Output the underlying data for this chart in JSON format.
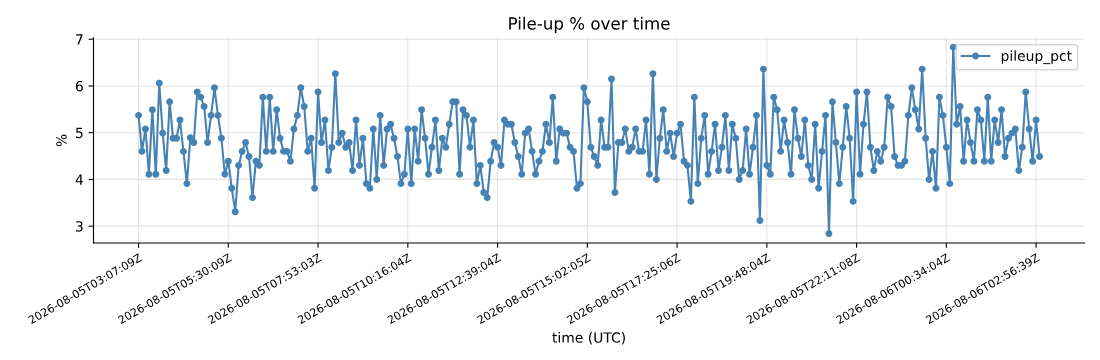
{
  "chart_data": {
    "type": "line",
    "title": "Pile-up % over time",
    "xlabel": "time (UTC)",
    "ylabel": "%",
    "categories": [
      "2026-08-05T03:07:09Z",
      null,
      null,
      null,
      null,
      null,
      null,
      null,
      null,
      null,
      null,
      null,
      null,
      null,
      null,
      null,
      null,
      null,
      null,
      null,
      null,
      null,
      null,
      null,
      null,
      null,
      "2026-08-05T05:30:09Z",
      null,
      null,
      null,
      null,
      null,
      null,
      null,
      null,
      null,
      null,
      null,
      null,
      null,
      null,
      null,
      null,
      null,
      null,
      null,
      null,
      null,
      null,
      null,
      null,
      null,
      "2026-08-05T07:53:03Z",
      null,
      null,
      null,
      null,
      null,
      null,
      null,
      null,
      null,
      null,
      null,
      null,
      null,
      null,
      null,
      null,
      null,
      null,
      null,
      null,
      null,
      null,
      null,
      null,
      null,
      "2026-08-05T10:16:04Z",
      null,
      null,
      null,
      null,
      null,
      null,
      null,
      null,
      null,
      null,
      null,
      null,
      null,
      null,
      null,
      null,
      null,
      null,
      null,
      null,
      null,
      null,
      null,
      null,
      null,
      "2026-08-05T12:39:04Z",
      null,
      null,
      null,
      null,
      null,
      null,
      null,
      null,
      null,
      null,
      null,
      null,
      null,
      null,
      null,
      null,
      null,
      null,
      null,
      null,
      null,
      null,
      null,
      null,
      null,
      "2026-08-05T15:02:05Z",
      null,
      null,
      null,
      null,
      null,
      null,
      null,
      null,
      null,
      null,
      null,
      null,
      null,
      null,
      null,
      null,
      null,
      null,
      null,
      null,
      null,
      null,
      null,
      null,
      null,
      "2026-08-05T17:25:06Z",
      null,
      null,
      null,
      null,
      null,
      null,
      null,
      null,
      null,
      null,
      null,
      null,
      null,
      null,
      null,
      null,
      null,
      null,
      null,
      null,
      null,
      null,
      null,
      null,
      null,
      "2026-08-05T19:48:04Z",
      null,
      null,
      null,
      null,
      null,
      null,
      null,
      null,
      null,
      null,
      null,
      null,
      null,
      null,
      null,
      null,
      null,
      null,
      null,
      null,
      null,
      null,
      null,
      null,
      null,
      "2026-08-05T22:11:08Z",
      null,
      null,
      null,
      null,
      null,
      null,
      null,
      null,
      null,
      null,
      null,
      null,
      null,
      null,
      null,
      null,
      null,
      null,
      null,
      null,
      null,
      null,
      null,
      null,
      null,
      "2026-08-06T00:34:04Z",
      null,
      null,
      null,
      null,
      null,
      null,
      null,
      null,
      null,
      null,
      null,
      null,
      null,
      null,
      null,
      null,
      null,
      null,
      null,
      null,
      null,
      null,
      null,
      null,
      null,
      "2026-08-06T02:56:39Z",
      null
    ],
    "series": [
      {
        "name": "pileup_pct",
        "color": "#4682b4",
        "values": [
          5.37,
          4.6,
          5.08,
          4.11,
          5.49,
          4.11,
          6.06,
          4.99,
          4.19,
          5.66,
          4.88,
          4.88,
          5.27,
          4.6,
          3.91,
          4.89,
          4.79,
          5.87,
          5.76,
          5.56,
          4.79,
          5.37,
          5.96,
          5.37,
          4.88,
          4.11,
          4.39,
          3.81,
          3.31,
          4.3,
          4.6,
          4.79,
          4.49,
          3.61,
          4.39,
          4.3,
          5.76,
          4.6,
          5.76,
          4.6,
          5.49,
          4.88,
          4.6,
          4.6,
          4.39,
          5.08,
          5.37,
          5.96,
          5.56,
          4.6,
          4.88,
          3.81,
          5.87,
          4.79,
          5.27,
          4.19,
          4.69,
          6.26,
          4.79,
          4.99,
          4.69,
          4.79,
          4.19,
          5.27,
          4.3,
          4.88,
          3.91,
          3.81,
          5.08,
          4.0,
          5.37,
          4.3,
          5.08,
          5.18,
          4.88,
          4.49,
          3.91,
          4.11,
          5.08,
          3.91,
          5.08,
          4.39,
          5.49,
          4.88,
          4.11,
          4.69,
          5.27,
          4.19,
          4.88,
          4.69,
          5.18,
          5.66,
          5.66,
          4.11,
          5.49,
          5.37,
          4.69,
          5.27,
          3.91,
          4.3,
          3.72,
          3.61,
          4.39,
          4.79,
          4.69,
          4.3,
          5.27,
          5.18,
          5.18,
          4.79,
          4.49,
          4.11,
          4.99,
          5.08,
          4.6,
          4.11,
          4.39,
          4.6,
          5.18,
          4.79,
          5.76,
          4.39,
          5.08,
          4.99,
          4.99,
          4.69,
          4.6,
          3.81,
          3.91,
          5.96,
          5.66,
          4.69,
          4.49,
          4.3,
          5.27,
          4.69,
          4.69,
          6.15,
          3.72,
          4.79,
          4.79,
          5.08,
          4.6,
          4.69,
          5.08,
          4.6,
          4.6,
          5.27,
          4.11,
          6.26,
          4.0,
          4.88,
          5.49,
          4.6,
          4.99,
          4.49,
          4.99,
          5.18,
          4.39,
          4.3,
          3.53,
          5.76,
          3.91,
          4.88,
          5.37,
          4.11,
          4.6,
          5.18,
          4.19,
          4.69,
          5.37,
          4.19,
          5.18,
          4.88,
          4.0,
          4.19,
          5.08,
          4.11,
          4.69,
          5.37,
          3.12,
          6.36,
          4.3,
          4.11,
          5.76,
          5.49,
          4.6,
          5.27,
          4.79,
          4.11,
          5.49,
          4.88,
          4.49,
          5.27,
          4.3,
          4.0,
          5.18,
          3.81,
          4.6,
          5.37,
          2.84,
          5.66,
          4.79,
          3.91,
          4.69,
          5.56,
          4.88,
          3.53,
          5.87,
          4.11,
          5.18,
          5.87,
          4.69,
          4.19,
          4.6,
          4.39,
          4.69,
          5.76,
          5.56,
          4.49,
          4.3,
          4.3,
          4.39,
          5.37,
          5.96,
          5.49,
          5.08,
          6.36,
          4.88,
          4.0,
          4.6,
          3.81,
          5.76,
          5.37,
          4.69,
          3.91,
          6.83,
          5.18,
          5.56,
          4.39,
          5.27,
          4.79,
          4.39,
          5.49,
          5.27,
          4.39,
          5.76,
          4.39,
          5.27,
          4.79,
          5.49,
          4.49,
          4.88,
          4.99,
          5.08,
          4.19,
          4.69,
          5.87,
          5.08,
          4.39,
          5.27,
          4.49
        ]
      }
    ],
    "ylim": [
      2.64,
      7.03
    ],
    "yticks": [
      3,
      4,
      5,
      6,
      7
    ],
    "grid": true,
    "legend": "top right",
    "marker": "circle",
    "line_style": "solid"
  }
}
